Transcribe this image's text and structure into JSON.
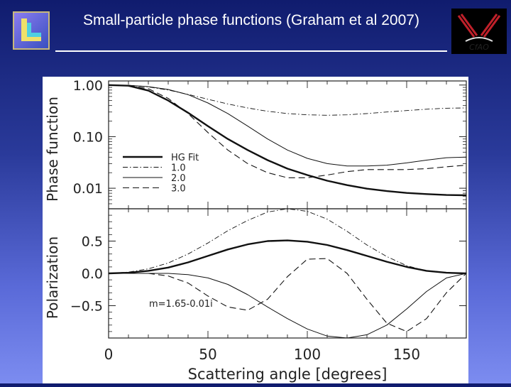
{
  "header": {
    "title": "Small-particle phase functions (Graham et al 2007)",
    "logo_right_text": "CfAO"
  },
  "chart_data": [
    {
      "type": "line",
      "ylabel": "Phase function",
      "yscale": "log",
      "ylim": [
        0.004,
        1.2
      ],
      "xlim": [
        0,
        180
      ],
      "yticks": [
        "1.00",
        "0.10",
        "0.01"
      ],
      "legend_position": "lower-left",
      "series": [
        {
          "name": "HG Fit",
          "style": "thick-solid",
          "x": [
            0,
            10,
            20,
            30,
            40,
            50,
            60,
            70,
            80,
            90,
            100,
            110,
            120,
            130,
            140,
            150,
            160,
            170,
            180
          ],
          "y": [
            1.0,
            0.97,
            0.78,
            0.5,
            0.29,
            0.16,
            0.09,
            0.055,
            0.035,
            0.024,
            0.018,
            0.014,
            0.0115,
            0.0098,
            0.0088,
            0.0081,
            0.0077,
            0.0074,
            0.0073
          ]
        },
        {
          "name": "1.0",
          "style": "dash-dot",
          "x": [
            0,
            10,
            20,
            30,
            40,
            50,
            60,
            70,
            80,
            90,
            100,
            110,
            120,
            130,
            140,
            150,
            160,
            170,
            180
          ],
          "y": [
            1.0,
            0.99,
            0.92,
            0.8,
            0.66,
            0.53,
            0.43,
            0.36,
            0.31,
            0.28,
            0.265,
            0.26,
            0.265,
            0.28,
            0.3,
            0.32,
            0.34,
            0.355,
            0.36
          ]
        },
        {
          "name": "2.0",
          "style": "thin-solid",
          "x": [
            0,
            10,
            20,
            30,
            40,
            50,
            60,
            70,
            80,
            90,
            100,
            110,
            120,
            130,
            140,
            150,
            160,
            170,
            180
          ],
          "y": [
            1.0,
            0.99,
            0.93,
            0.82,
            0.65,
            0.45,
            0.28,
            0.16,
            0.09,
            0.055,
            0.038,
            0.03,
            0.027,
            0.027,
            0.028,
            0.031,
            0.035,
            0.039,
            0.04
          ]
        },
        {
          "name": "3.0",
          "style": "dashed",
          "x": [
            0,
            10,
            20,
            30,
            40,
            50,
            60,
            70,
            80,
            90,
            100,
            110,
            120,
            130,
            140,
            150,
            160,
            170,
            180
          ],
          "y": [
            1.0,
            0.98,
            0.85,
            0.55,
            0.28,
            0.12,
            0.055,
            0.03,
            0.02,
            0.016,
            0.016,
            0.018,
            0.021,
            0.023,
            0.023,
            0.023,
            0.024,
            0.026,
            0.028
          ]
        }
      ]
    },
    {
      "type": "line",
      "ylabel": "Polarization",
      "xlabel": "Scattering angle [degrees]",
      "ylim": [
        -1.0,
        1.0
      ],
      "xlim": [
        0,
        180
      ],
      "yticks": [
        "0.5",
        "0.0",
        "-0.5"
      ],
      "xticks": [
        "0",
        "50",
        "100",
        "150"
      ],
      "annotation": "m=1.65-0.01i",
      "series": [
        {
          "name": "HG Fit",
          "style": "thick-solid",
          "x": [
            0,
            10,
            20,
            30,
            40,
            50,
            60,
            70,
            80,
            90,
            100,
            110,
            120,
            130,
            140,
            150,
            160,
            170,
            180
          ],
          "y": [
            0.0,
            0.01,
            0.04,
            0.09,
            0.17,
            0.27,
            0.37,
            0.45,
            0.5,
            0.51,
            0.49,
            0.44,
            0.36,
            0.27,
            0.18,
            0.1,
            0.04,
            0.01,
            0.0
          ]
        },
        {
          "name": "1.0",
          "style": "dash-dot",
          "x": [
            0,
            10,
            20,
            30,
            40,
            50,
            60,
            70,
            80,
            90,
            100,
            110,
            120,
            130,
            140,
            150,
            160,
            170,
            180
          ],
          "y": [
            0.0,
            0.02,
            0.07,
            0.16,
            0.3,
            0.47,
            0.66,
            0.82,
            0.95,
            1.0,
            0.96,
            0.84,
            0.65,
            0.44,
            0.26,
            0.12,
            0.04,
            0.01,
            0.0
          ]
        },
        {
          "name": "2.0",
          "style": "thin-solid",
          "x": [
            0,
            10,
            20,
            30,
            40,
            50,
            60,
            70,
            80,
            90,
            100,
            110,
            120,
            130,
            140,
            150,
            160,
            170,
            180
          ],
          "y": [
            0.0,
            0.0,
            0.0,
            0.0,
            -0.02,
            -0.07,
            -0.17,
            -0.33,
            -0.52,
            -0.7,
            -0.86,
            -0.97,
            -1.0,
            -0.95,
            -0.8,
            -0.55,
            -0.28,
            -0.07,
            0.0
          ]
        },
        {
          "name": "3.0",
          "style": "dashed",
          "x": [
            0,
            10,
            20,
            30,
            40,
            50,
            60,
            70,
            80,
            90,
            100,
            110,
            120,
            130,
            140,
            150,
            160,
            170,
            180
          ],
          "y": [
            0.0,
            0.0,
            0.0,
            -0.04,
            -0.15,
            -0.35,
            -0.52,
            -0.57,
            -0.4,
            -0.05,
            0.22,
            0.23,
            0.0,
            -0.4,
            -0.77,
            -0.9,
            -0.7,
            -0.3,
            0.0
          ]
        }
      ]
    }
  ]
}
